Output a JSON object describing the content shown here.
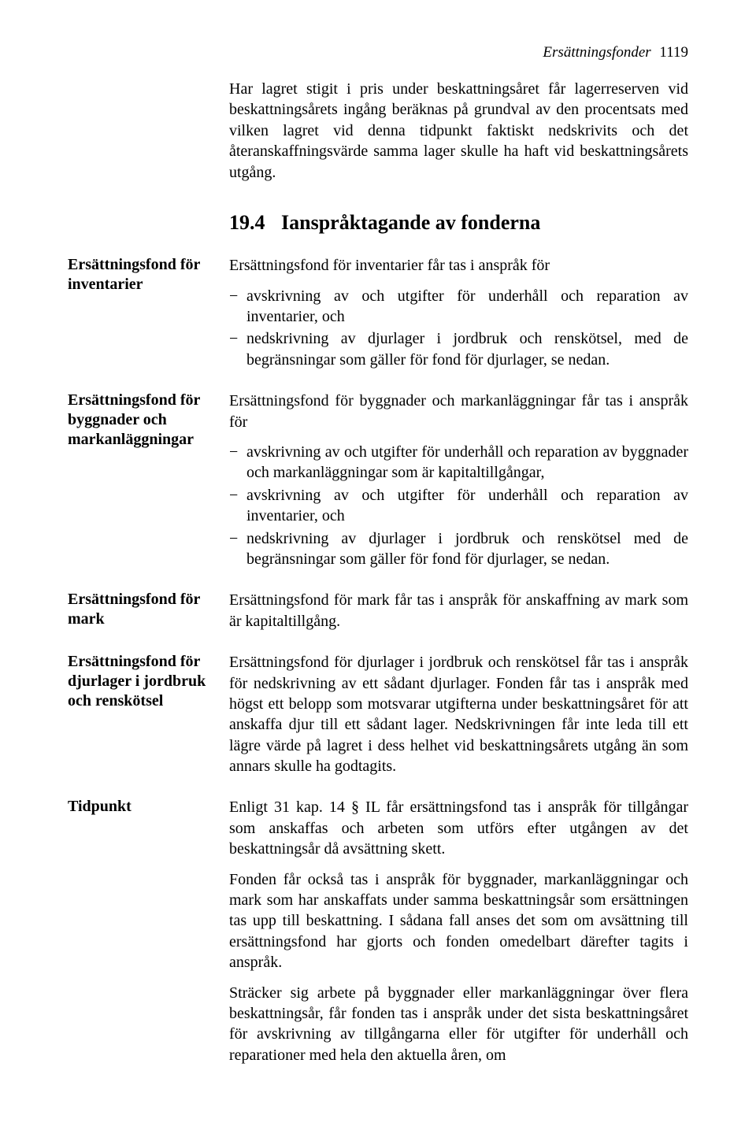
{
  "header": {
    "running_title": "Ersättningsfonder",
    "page_number": "1119"
  },
  "intro_paragraph": "Har lagret stigit i pris under beskattningsåret får lagerreserven vid beskattningsårets ingång beräknas på grundval av den procentsats med vilken lagret vid denna tidpunkt faktiskt nedskrivits och det återanskaffningsvärde samma lager skulle ha haft vid beskattningsårets utgång.",
  "section": {
    "number": "19.4",
    "title": "Ianspråktagande av fonderna"
  },
  "blocks": {
    "inventarier": {
      "side_label": "Ersättningsfond för inventarier",
      "lead": "Ersättningsfond för inventarier får tas i anspråk för",
      "items": [
        "avskrivning av och utgifter för underhåll och reparation av inventarier, och",
        "nedskrivning av djurlager i jordbruk och renskötsel, med de begränsningar som gäller för fond för djurlager, se nedan."
      ]
    },
    "byggnader": {
      "side_label": "Ersättningsfond för byggnader och markanläggningar",
      "lead": "Ersättningsfond för byggnader och markanläggningar får tas i anspråk för",
      "items": [
        "avskrivning av och utgifter för underhåll och reparation av byggnader och markanläggningar som är kapitaltillgångar,",
        "avskrivning av och utgifter för underhåll och reparation av inventarier, och",
        "nedskrivning av djurlager i jordbruk och renskötsel med de begränsningar som gäller för fond för djurlager, se nedan."
      ]
    },
    "mark": {
      "side_label": "Ersättningsfond för mark",
      "text": "Ersättningsfond för mark får tas i anspråk för anskaffning av mark som är kapitaltillgång."
    },
    "djurlager": {
      "side_label": "Ersättningsfond för djurlager i jordbruk och renskötsel",
      "text": "Ersättningsfond för djurlager i jordbruk och renskötsel får tas i anspråk för nedskrivning av ett sådant djurlager. Fonden får tas i anspråk med högst ett belopp som motsvarar utgifterna under beskattningsåret för att anskaffa djur till ett sådant lager. Nedskrivningen får inte leda till ett lägre värde på lagret i dess helhet vid beskattningsårets utgång än som annars skulle ha godtagits."
    },
    "tidpunkt": {
      "side_label": "Tidpunkt",
      "paragraphs": [
        "Enligt 31 kap. 14 § IL får ersättningsfond tas i anspråk för tillgångar som anskaffas och arbeten som utförs efter utgången av det beskattningsår då avsättning skett.",
        "Fonden får också tas i anspråk för byggnader, markanläggningar och mark som har anskaffats under samma beskattningsår som ersättningen tas upp till beskattning. I sådana fall anses det som om avsättning till ersättningsfond har gjorts och fonden omedelbart därefter tagits i anspråk.",
        "Sträcker sig arbete på byggnader eller markanläggningar över flera beskattningsår, får fonden tas i anspråk under det sista beskattningsåret för avskrivning av tillgångarna eller för utgifter för underhåll och reparationer med hela den aktuella åren, om"
      ]
    }
  }
}
